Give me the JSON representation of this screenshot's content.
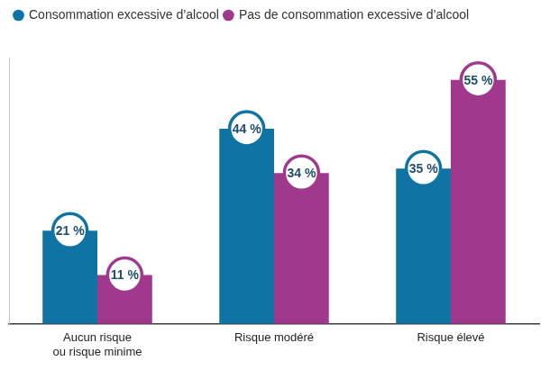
{
  "chart_data": {
    "type": "bar",
    "categories": [
      "Aucun risque\nou risque minime",
      "Risque modéré",
      "Risque élevé"
    ],
    "series": [
      {
        "name": "Consommation excessive d’alcool",
        "color": "#0f73a3",
        "values": [
          21,
          44,
          35
        ],
        "value_labels": [
          "21 %",
          "44 %",
          "35 %"
        ]
      },
      {
        "name": "Pas de consommation excessive d’alcool",
        "color": "#a0398e",
        "values": [
          11,
          34,
          55
        ],
        "value_labels": [
          "11 %",
          "34 %",
          "55 %"
        ]
      }
    ],
    "ylim": [
      0,
      60
    ],
    "grid": false,
    "legend": "top-left",
    "data_labels": true,
    "tick_labels": "x"
  }
}
